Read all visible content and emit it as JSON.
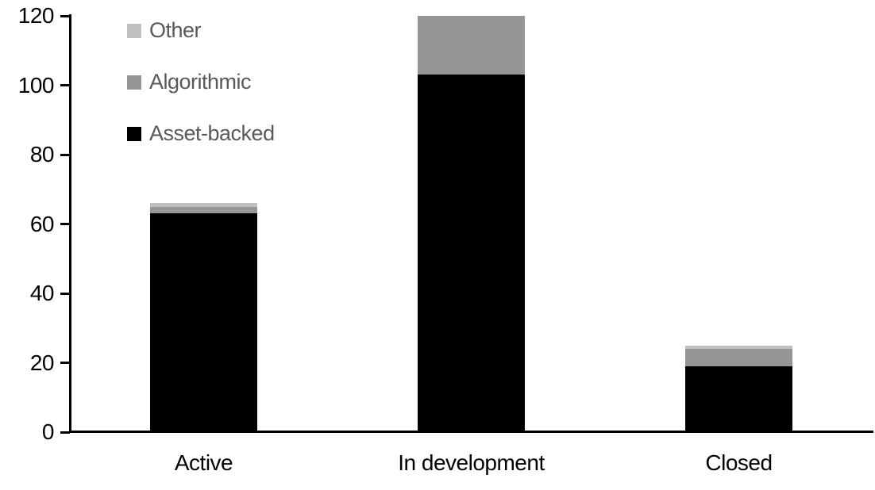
{
  "chart_data": {
    "type": "bar",
    "stacked": true,
    "title": "",
    "xlabel": "",
    "ylabel": "",
    "categories": [
      "Active",
      "In development",
      "Closed"
    ],
    "series": [
      {
        "name": "Asset-backed",
        "color": "#000000",
        "values": [
          63,
          103,
          19
        ]
      },
      {
        "name": "Algorithmic",
        "color": "#969696",
        "values": [
          2,
          17,
          5
        ]
      },
      {
        "name": "Other",
        "color": "#c0c0c0",
        "values": [
          1,
          0,
          1
        ]
      }
    ],
    "totals": [
      66,
      120,
      25
    ],
    "ylim": [
      0,
      120
    ],
    "yticks": [
      0,
      20,
      40,
      60,
      80,
      100,
      120
    ],
    "grid": false,
    "legend_position": "top-left-inside",
    "legend_order_top_to_bottom": [
      "Other",
      "Algorithmic",
      "Asset-backed"
    ]
  },
  "legend": {
    "items": [
      {
        "label": "Other",
        "color": "#c0c0c0"
      },
      {
        "label": "Algorithmic",
        "color": "#969696"
      },
      {
        "label": "Asset-backed",
        "color": "#000000"
      }
    ],
    "text_color": "#595959"
  },
  "colors": {
    "background": "#ffffff",
    "axis": "#000000",
    "tick_label": "#000000"
  }
}
